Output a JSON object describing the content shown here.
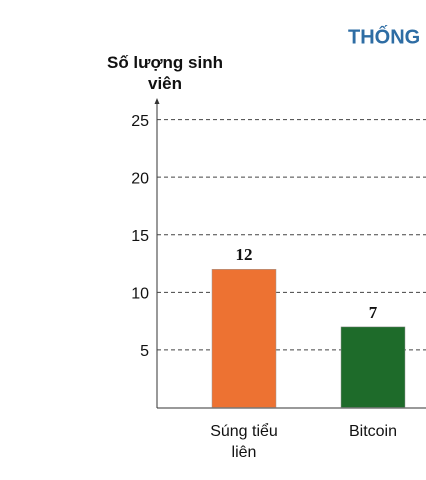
{
  "chart_data": {
    "type": "bar",
    "title": "THỐNG",
    "y_label": "Số lượng sinh viên",
    "categories": [
      "Súng tiểu liên",
      "Bitcoin"
    ],
    "values": [
      12,
      7
    ],
    "colors": [
      "#ed7232",
      "#1e6b2a"
    ],
    "ylim": [
      0,
      26.7
    ],
    "yticks": [
      5,
      10,
      15,
      20,
      25
    ],
    "grid": true
  }
}
